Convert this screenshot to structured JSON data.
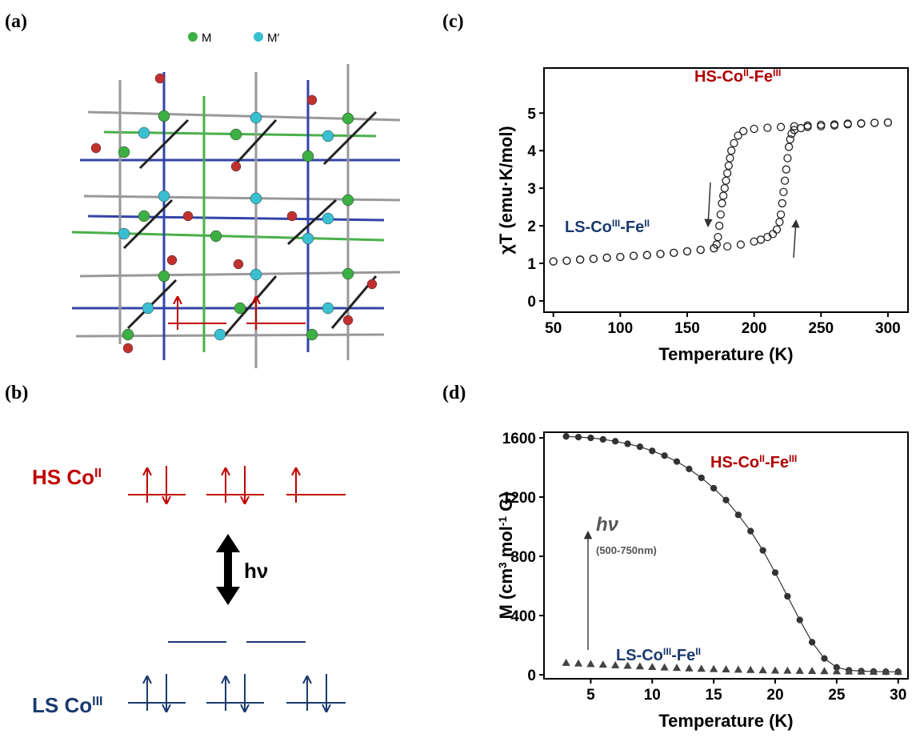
{
  "panels": {
    "a": "(a)",
    "b": "(b)",
    "c": "(c)",
    "d": "(d)"
  },
  "structure": {
    "legend": [
      "M",
      "M′"
    ]
  },
  "levels": {
    "hs_label": [
      "HS Co",
      "II"
    ],
    "ls_label": [
      "LS Co",
      "III"
    ],
    "excitation": "hν"
  },
  "chart_data": [
    {
      "type": "scatter",
      "x_label": [
        "Temperature (K)"
      ],
      "y_label": [
        "χT (emu·K/mol)"
      ],
      "xlim": [
        43,
        315
      ],
      "ylim": [
        -0.3,
        6.2
      ],
      "xticks": [
        50,
        100,
        150,
        200,
        250,
        300
      ],
      "yticks": [
        0,
        1,
        2,
        3,
        4,
        5
      ],
      "series": [
        {
          "marker": "circle",
          "filled": false,
          "line": false,
          "color": "#222222",
          "x": [
            300,
            290,
            280,
            270,
            260,
            250,
            240,
            230,
            220,
            210,
            200,
            192,
            188,
            185,
            183,
            182,
            181,
            180,
            179,
            178,
            177,
            176,
            175,
            174,
            173,
            172,
            170,
            160,
            150,
            140,
            130,
            120,
            110,
            100,
            90,
            80,
            70,
            60,
            50
          ],
          "values": [
            4.75,
            4.74,
            4.73,
            4.72,
            4.7,
            4.69,
            4.67,
            4.65,
            4.63,
            4.61,
            4.58,
            4.52,
            4.4,
            4.2,
            4.0,
            3.8,
            3.6,
            3.4,
            3.2,
            3.0,
            2.8,
            2.6,
            2.3,
            2.0,
            1.7,
            1.5,
            1.4,
            1.36,
            1.32,
            1.28,
            1.25,
            1.22,
            1.2,
            1.17,
            1.15,
            1.12,
            1.1,
            1.07,
            1.05
          ]
        },
        {
          "marker": "circle",
          "filled": false,
          "line": false,
          "color": "#222222",
          "x": [
            50,
            60,
            70,
            80,
            90,
            100,
            110,
            120,
            130,
            140,
            150,
            160,
            170,
            180,
            190,
            200,
            205,
            210,
            214,
            217,
            219,
            220,
            221,
            222,
            223,
            224,
            225,
            226,
            227,
            228,
            230,
            235,
            240,
            250,
            260,
            270,
            280,
            290,
            300
          ],
          "values": [
            1.05,
            1.07,
            1.1,
            1.12,
            1.15,
            1.17,
            1.2,
            1.22,
            1.25,
            1.28,
            1.32,
            1.36,
            1.4,
            1.45,
            1.5,
            1.58,
            1.63,
            1.7,
            1.78,
            1.9,
            2.1,
            2.3,
            2.6,
            2.9,
            3.2,
            3.5,
            3.8,
            4.1,
            4.3,
            4.45,
            4.55,
            4.6,
            4.63,
            4.65,
            4.67,
            4.7,
            4.72,
            4.74,
            4.75
          ]
        }
      ],
      "annotations": [
        {
          "text": [
            "HS-Co",
            "II",
            "-Fe",
            "III"
          ],
          "color": "#b00000"
        },
        {
          "text": [
            "LS-Co",
            "III",
            "-Fe",
            "II"
          ],
          "color": "#1a3a6e"
        }
      ]
    },
    {
      "type": "scatter",
      "x_label": [
        "Temperature (K)"
      ],
      "y_label": [
        "M (cm",
        "3",
        " mol",
        "-1",
        " G)"
      ],
      "xlim": [
        1.2,
        30.8
      ],
      "ylim": [
        -27,
        1638
      ],
      "xticks": [
        5,
        10,
        15,
        20,
        25,
        30
      ],
      "yticks": [
        0,
        400,
        800,
        1200,
        1600
      ],
      "series": [
        {
          "marker": "circle",
          "filled": true,
          "line": true,
          "color": "#333333",
          "x": [
            3,
            4,
            5,
            6,
            7,
            8,
            9,
            10,
            11,
            12,
            13,
            14,
            15,
            16,
            17,
            18,
            19,
            20,
            21,
            22,
            23,
            24,
            25,
            26,
            27,
            28,
            29,
            30
          ],
          "values": [
            1610,
            1605,
            1600,
            1590,
            1577,
            1560,
            1540,
            1512,
            1480,
            1440,
            1390,
            1330,
            1260,
            1180,
            1080,
            970,
            840,
            690,
            530,
            370,
            220,
            110,
            50,
            30,
            25,
            22,
            20,
            20
          ]
        },
        {
          "marker": "triangle",
          "filled": true,
          "line": false,
          "color": "#444444",
          "x": [
            3,
            4,
            5,
            6,
            7,
            8,
            9,
            10,
            11,
            12,
            13,
            14,
            15,
            16,
            17,
            18,
            19,
            20,
            21,
            22,
            23,
            24,
            25,
            26,
            27,
            28,
            29,
            30
          ],
          "values": [
            80,
            76,
            72,
            68,
            64,
            60,
            56,
            52,
            49,
            46,
            43,
            40,
            38,
            36,
            34,
            32,
            30,
            28,
            27,
            26,
            25,
            24,
            23,
            22,
            21,
            20,
            20,
            20
          ]
        }
      ],
      "annotations": [
        {
          "text": [
            "HS-Co",
            "II",
            "-Fe",
            "III"
          ],
          "color": "#b00000"
        },
        {
          "text": [
            "hν"
          ],
          "color": "#555555"
        },
        {
          "text": [
            "(500-750nm)"
          ],
          "color": "#555555"
        },
        {
          "text": [
            "LS-Co",
            "III",
            "-Fe",
            "II"
          ],
          "color": "#1a3a6e"
        }
      ]
    }
  ]
}
